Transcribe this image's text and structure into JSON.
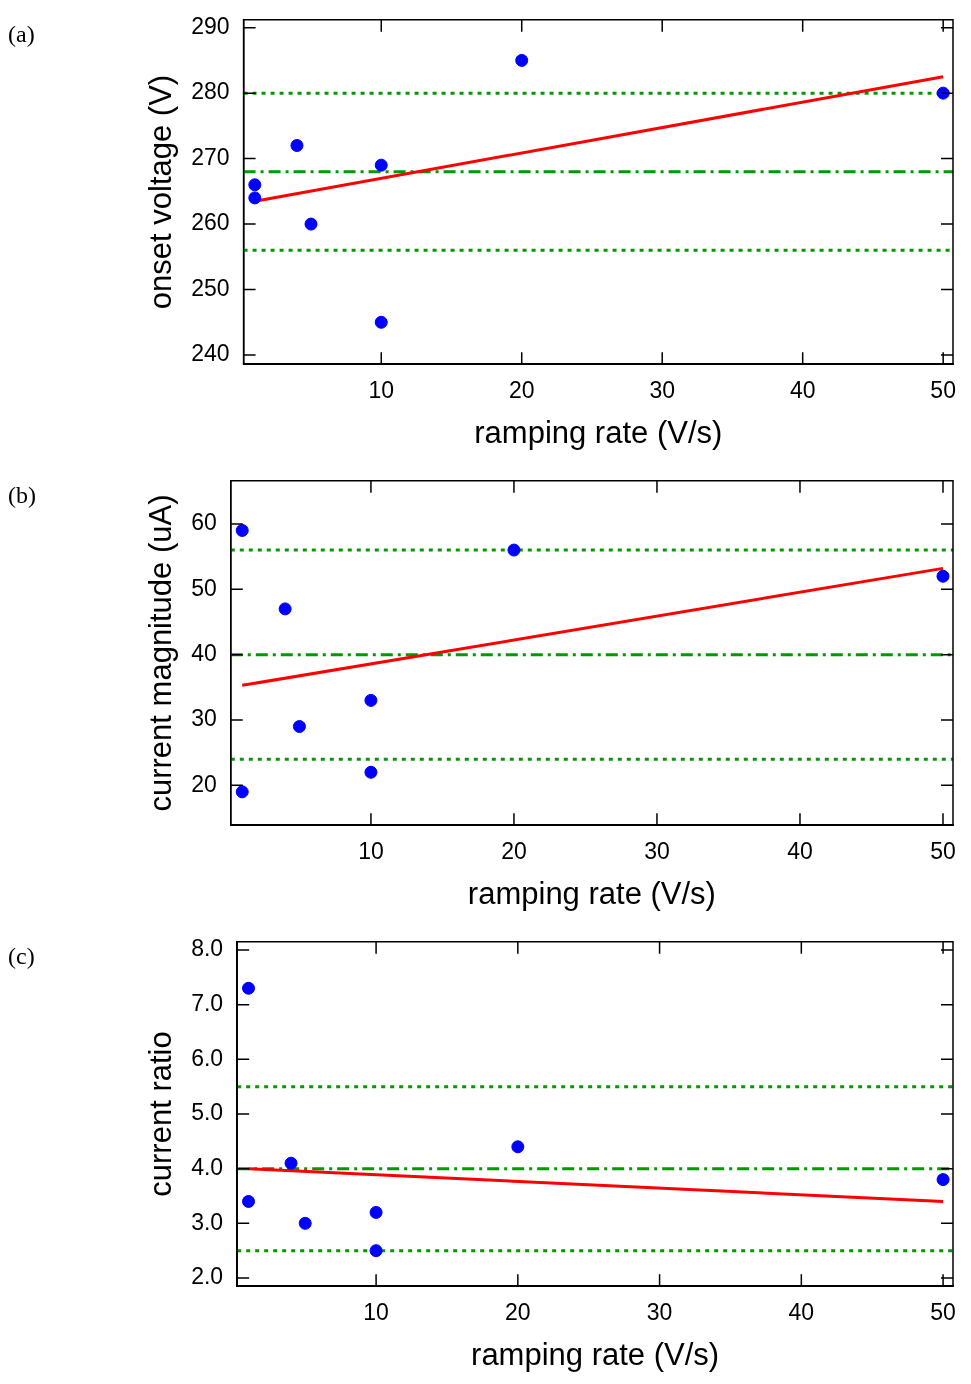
{
  "chart_data": [
    {
      "type": "scatter",
      "xlabel": "ramping rate (V/s)",
      "ylabel": "onset voltage (V)",
      "annotations": [
        "(a)"
      ],
      "xlim": [
        0.2,
        50.7
      ],
      "ylim": [
        238.6,
        291.2
      ],
      "xticks": [
        10,
        20,
        30,
        40,
        50
      ],
      "yticks": [
        240,
        250,
        260,
        270,
        280,
        290
      ],
      "series": [
        {
          "color": "#0000ff",
          "marker": "circle",
          "x": [
            1,
            1,
            4,
            5,
            10,
            10,
            20,
            50
          ],
          "values": [
            266,
            264,
            272,
            260,
            269,
            245,
            285,
            280
          ]
        },
        {
          "type": "line",
          "color": "#ff0000",
          "marker": "none",
          "line_style": "solid",
          "x": [
            1,
            50
          ],
          "values": [
            263.5,
            282.5
          ]
        }
      ],
      "ref_lines": [
        {
          "axis": "y",
          "value": 280,
          "color": "#009900",
          "line_style": "dotted"
        },
        {
          "axis": "y",
          "value": 268,
          "color": "#009900",
          "line_style": "dashed"
        },
        {
          "axis": "y",
          "value": 256,
          "color": "#009900",
          "line_style": "dotted"
        }
      ]
    },
    {
      "type": "scatter",
      "xlabel": "ramping rate (V/s)",
      "ylabel": "current magnitude (uA)",
      "annotations": [
        "(b)"
      ],
      "xlim": [
        0.2,
        50.7
      ],
      "ylim": [
        13.9,
        66.6
      ],
      "xticks": [
        10,
        20,
        30,
        40,
        50
      ],
      "yticks": [
        20,
        30,
        40,
        50,
        60
      ],
      "series": [
        {
          "color": "#0000ff",
          "marker": "circle",
          "x": [
            1,
            1,
            4,
            5,
            10,
            10,
            20,
            50
          ],
          "values": [
            59,
            19,
            47,
            29,
            33,
            22,
            56,
            52
          ]
        },
        {
          "type": "line",
          "color": "#ff0000",
          "marker": "none",
          "line_style": "solid",
          "x": [
            1,
            50
          ],
          "values": [
            35.3,
            53.2
          ]
        }
      ],
      "ref_lines": [
        {
          "axis": "y",
          "value": 56,
          "color": "#009900",
          "line_style": "dotted"
        },
        {
          "axis": "y",
          "value": 40,
          "color": "#009900",
          "line_style": "dashed"
        },
        {
          "axis": "y",
          "value": 24,
          "color": "#009900",
          "line_style": "dotted"
        }
      ]
    },
    {
      "type": "scatter",
      "xlabel": "ramping rate (V/s)",
      "ylabel": "current ratio",
      "annotations": [
        "(c)"
      ],
      "xlim": [
        0.2,
        50.7
      ],
      "ylim": [
        1.85,
        8.15
      ],
      "xticks": [
        10,
        20,
        30,
        40,
        50
      ],
      "yticks": [
        {
          "value": 2,
          "label": "2.0"
        },
        {
          "value": 3,
          "label": "3.0"
        },
        {
          "value": 4,
          "label": "4.0"
        },
        {
          "value": 5,
          "label": "5.0"
        },
        {
          "value": 6,
          "label": "6.0"
        },
        {
          "value": 7,
          "label": "7.0"
        },
        {
          "value": 8,
          "label": "8.0"
        }
      ],
      "series": [
        {
          "color": "#0000ff",
          "marker": "circle",
          "x": [
            1,
            1,
            4,
            5,
            10,
            10,
            20,
            50
          ],
          "values": [
            7.3,
            3.4,
            4.1,
            3.0,
            3.2,
            2.5,
            4.4,
            3.8
          ]
        },
        {
          "type": "line",
          "color": "#ff0000",
          "marker": "none",
          "line_style": "solid",
          "x": [
            1,
            50
          ],
          "values": [
            4.0,
            3.4
          ]
        }
      ],
      "ref_lines": [
        {
          "axis": "y",
          "value": 5.5,
          "color": "#009900",
          "line_style": "dotted"
        },
        {
          "axis": "y",
          "value": 4.0,
          "color": "#009900",
          "line_style": "dashed"
        },
        {
          "axis": "y",
          "value": 2.5,
          "color": "#009900",
          "line_style": "dotted"
        }
      ]
    }
  ]
}
